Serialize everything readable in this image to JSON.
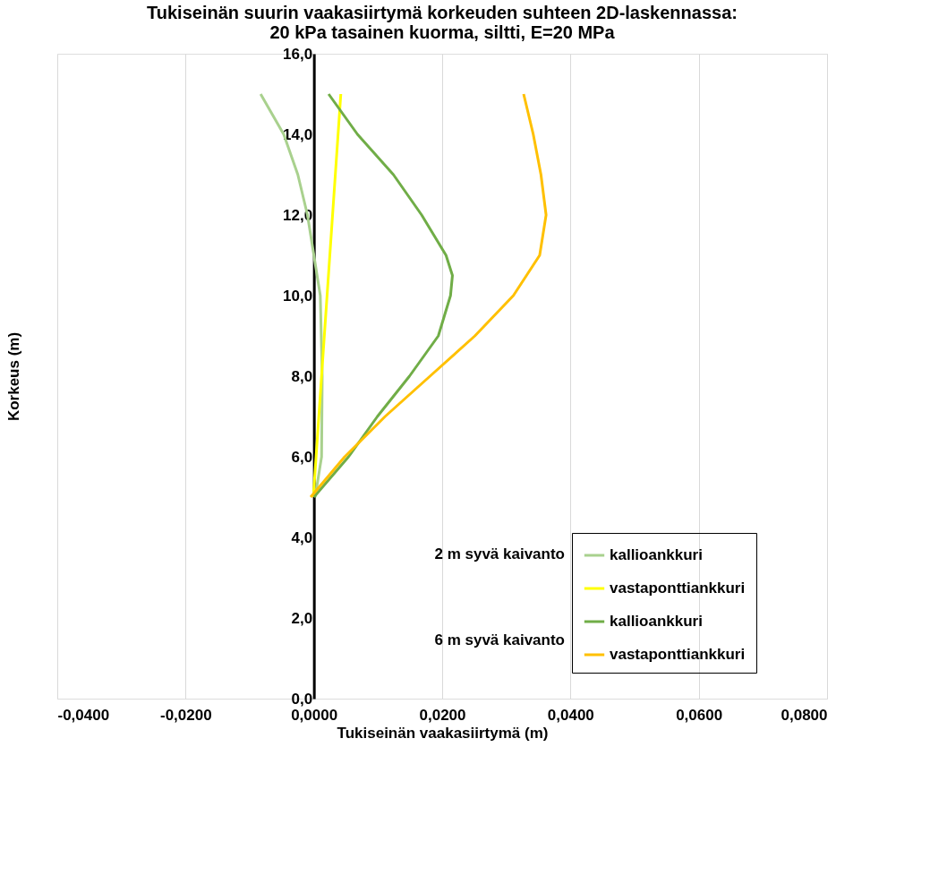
{
  "chart_data": {
    "type": "line",
    "title": [
      "Tukiseinän suurin vaakasiirtymä korkeuden suhteen 2D-laskennassa:",
      "20 kPa tasainen kuorma, siltti, E=20 MPa"
    ],
    "xlabel": "Tukiseinän vaakasiirtymä (m)",
    "ylabel": "Korkeus (m)",
    "series": [
      {
        "name": "kallioankkuri",
        "color": "#a9d18e",
        "x": [
          -0.0083,
          -0.0047,
          -0.0025,
          -0.001,
          0.0,
          0.001,
          0.0013,
          0.0012,
          0.0002
        ],
        "values": [
          15,
          14,
          13,
          12,
          11,
          10,
          8,
          6,
          5
        ]
      },
      {
        "name": "vastaponttiankkuri",
        "color": "#ffff00",
        "x": [
          0.0042,
          0.0,
          0.0
        ],
        "values": [
          15,
          5.2,
          5
        ]
      },
      {
        "name": "kallioankkuri",
        "color": "#70ad47",
        "x": [
          0.0023,
          0.0068,
          0.0124,
          0.0168,
          0.0206,
          0.0216,
          0.0213,
          0.0194,
          0.0149,
          0.0099,
          0.0054,
          0.0
        ],
        "values": [
          15,
          14,
          13,
          12,
          11,
          10.5,
          10,
          9,
          8,
          7,
          6,
          5
        ]
      },
      {
        "name": "vastaponttiankkuri",
        "color": "#ffc000",
        "x": [
          0.0327,
          0.0342,
          0.0354,
          0.0362,
          0.0352,
          0.0311,
          0.0251,
          0.0181,
          0.0111,
          0.0048,
          -0.0005
        ],
        "values": [
          15,
          14,
          13,
          12,
          11,
          10,
          9,
          8,
          7,
          6,
          5
        ]
      }
    ],
    "xlim": [
      -0.04,
      0.08
    ],
    "xticks": [
      {
        "value": -0.04,
        "label": "-0,0400"
      },
      {
        "value": -0.02,
        "label": "-0,0200"
      },
      {
        "value": 0,
        "label": "0,0000"
      },
      {
        "value": 0.02,
        "label": "0,0200"
      },
      {
        "value": 0.04,
        "label": "0,0400"
      },
      {
        "value": 0.06,
        "label": "0,0600"
      },
      {
        "value": 0.08,
        "label": "0,0800"
      }
    ],
    "ylim": [
      0,
      16
    ],
    "yticks": [
      {
        "value": 0,
        "label": "0,0"
      },
      {
        "value": 2,
        "label": "2,0"
      },
      {
        "value": 4,
        "label": "4,0"
      },
      {
        "value": 6,
        "label": "6,0"
      },
      {
        "value": 8,
        "label": "8,0"
      },
      {
        "value": 10,
        "label": "10,0"
      },
      {
        "value": 12,
        "label": "12,0"
      },
      {
        "value": 14,
        "label": "14,0"
      },
      {
        "value": 16,
        "label": "16,0"
      }
    ],
    "annotations": [
      "2 m syvä kaivanto",
      "6 m syvä kaivanto"
    ],
    "grid": "x",
    "legend": "bottom right",
    "marker": "none",
    "line_style": "solid"
  }
}
